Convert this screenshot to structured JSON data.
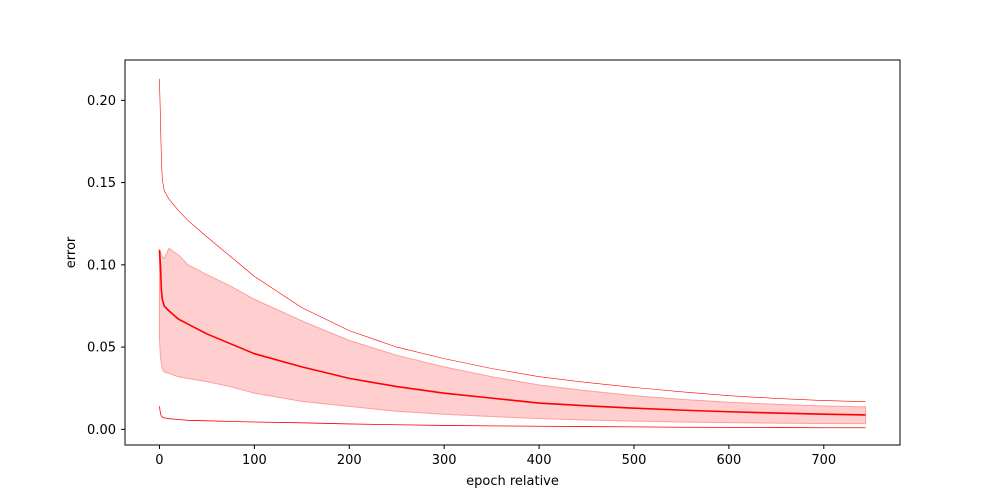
{
  "chart_data": {
    "type": "line",
    "xlabel": "epoch relative",
    "ylabel": "error",
    "xlim": [
      -36.3,
      780.3
    ],
    "ylim": [
      -0.0095,
      0.2245
    ],
    "xticks": [
      0,
      100,
      200,
      300,
      400,
      500,
      600,
      700
    ],
    "yticks": [
      0.0,
      0.05,
      0.1,
      0.15,
      0.2
    ],
    "xtick_labels": [
      "0",
      "100",
      "200",
      "300",
      "400",
      "500",
      "600",
      "700"
    ],
    "ytick_labels": [
      "0.00",
      "0.05",
      "0.10",
      "0.15",
      "0.20"
    ],
    "grid": false,
    "legend": "none",
    "color": "#ff0000",
    "band_color": "#ff9e9e",
    "x": [
      0,
      1,
      2,
      3,
      5,
      10,
      20,
      30,
      50,
      75,
      100,
      150,
      200,
      250,
      300,
      350,
      400,
      450,
      500,
      550,
      600,
      650,
      700,
      744
    ],
    "series": [
      {
        "role": "mean",
        "values": [
          0.109,
          0.1,
          0.085,
          0.079,
          0.075,
          0.072,
          0.067,
          0.064,
          0.058,
          0.052,
          0.046,
          0.038,
          0.031,
          0.026,
          0.022,
          0.019,
          0.016,
          0.0143,
          0.0129,
          0.0117,
          0.0107,
          0.0099,
          0.0092,
          0.0088
        ]
      },
      {
        "role": "band-upper",
        "values": [
          0.109,
          0.108,
          0.106,
          0.105,
          0.104,
          0.11,
          0.106,
          0.1,
          0.094,
          0.087,
          0.079,
          0.066,
          0.054,
          0.045,
          0.038,
          0.032,
          0.027,
          0.0235,
          0.0205,
          0.0182,
          0.0165,
          0.0152,
          0.0142,
          0.0137
        ]
      },
      {
        "role": "band-lower",
        "values": [
          0.055,
          0.045,
          0.04,
          0.037,
          0.035,
          0.034,
          0.032,
          0.031,
          0.029,
          0.026,
          0.022,
          0.017,
          0.014,
          0.011,
          0.0092,
          0.0078,
          0.0066,
          0.0057,
          0.005,
          0.0045,
          0.0041,
          0.0038,
          0.0036,
          0.0035
        ]
      },
      {
        "role": "max",
        "values": [
          0.213,
          0.19,
          0.165,
          0.152,
          0.145,
          0.14,
          0.133,
          0.127,
          0.117,
          0.105,
          0.093,
          0.074,
          0.06,
          0.05,
          0.043,
          0.037,
          0.032,
          0.0285,
          0.0255,
          0.0228,
          0.0205,
          0.0188,
          0.0175,
          0.0168
        ]
      },
      {
        "role": "min",
        "values": [
          0.014,
          0.01,
          0.008,
          0.0075,
          0.007,
          0.0065,
          0.006,
          0.0055,
          0.0052,
          0.0048,
          0.0045,
          0.004,
          0.0033,
          0.0028,
          0.0024,
          0.0021,
          0.0019,
          0.0017,
          0.0015,
          0.0013,
          0.0012,
          0.0011,
          0.001,
          0.001
        ]
      }
    ]
  }
}
